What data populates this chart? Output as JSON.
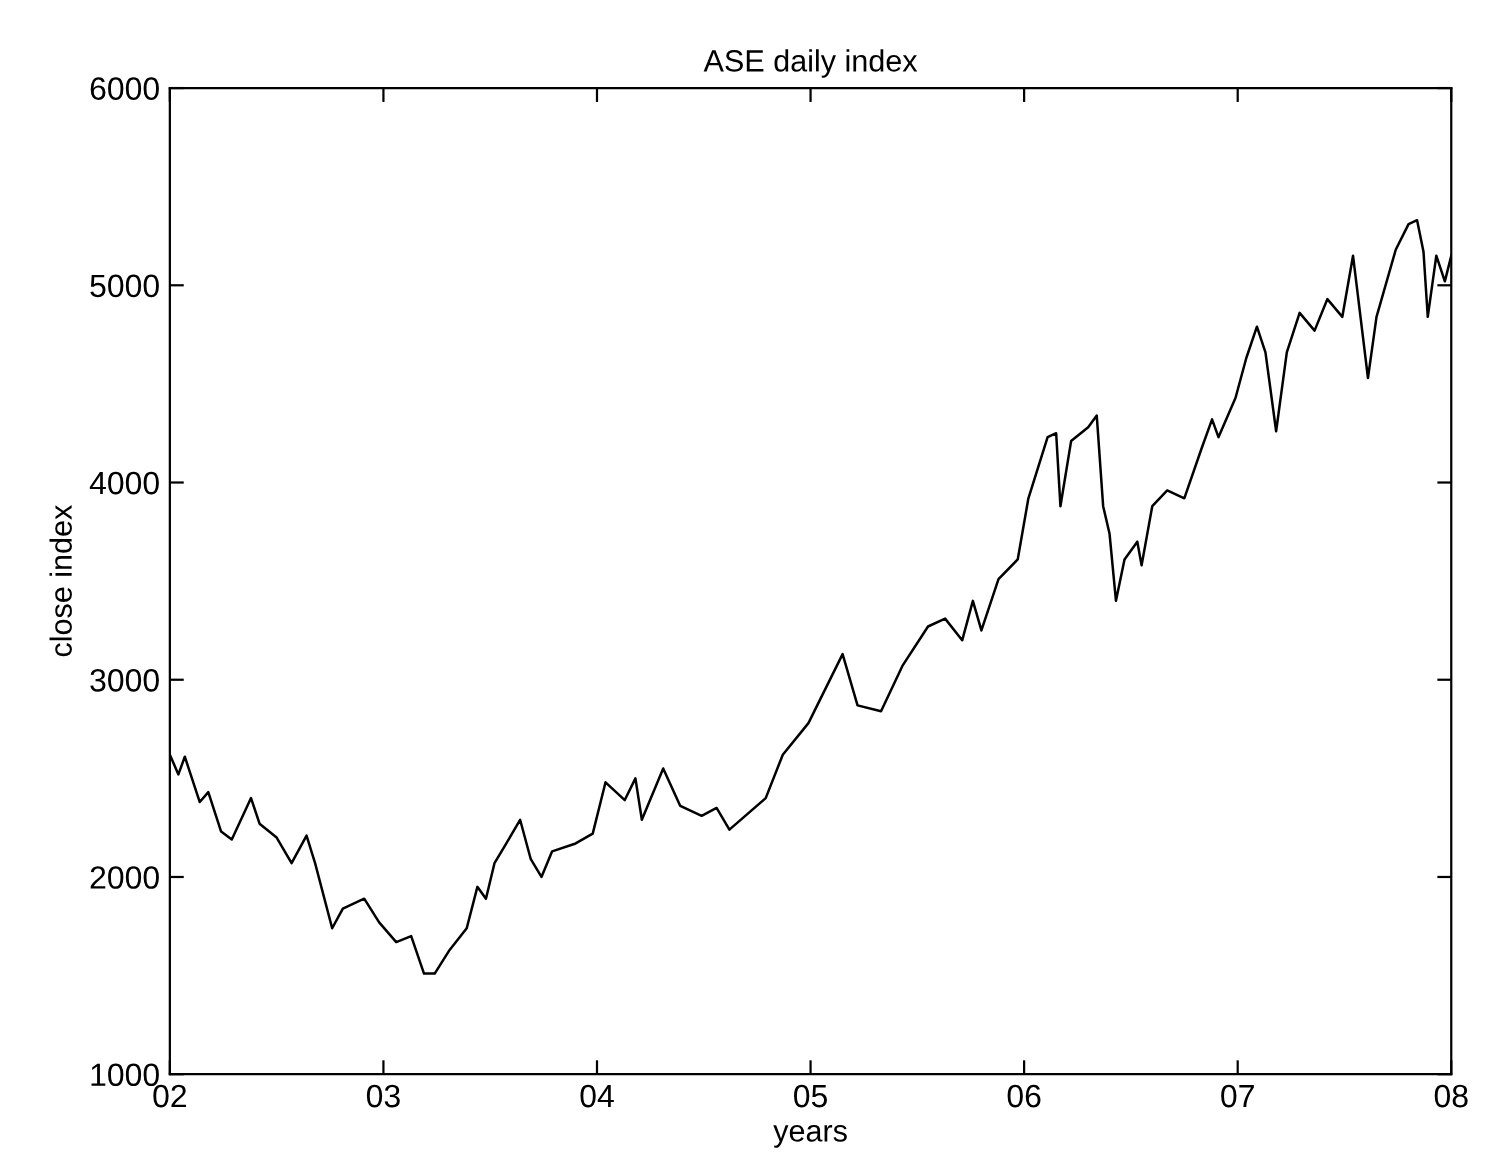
{
  "chart_data": {
    "type": "line",
    "title": "ASE daily index",
    "xlabel": "years",
    "ylabel": "close index",
    "xlim": [
      2,
      8
    ],
    "xticks": [
      {
        "value": 2,
        "label": "02"
      },
      {
        "value": 3,
        "label": "03"
      },
      {
        "value": 4,
        "label": "04"
      },
      {
        "value": 5,
        "label": "05"
      },
      {
        "value": 6,
        "label": "06"
      },
      {
        "value": 7,
        "label": "07"
      },
      {
        "value": 8,
        "label": "08"
      }
    ],
    "ylim": [
      1000,
      6000
    ],
    "yticks": [
      1000,
      2000,
      3000,
      4000,
      5000,
      6000
    ],
    "grid": false,
    "marker": "none",
    "line_style": "solid",
    "x": [
      2.0,
      2.04,
      2.07,
      2.14,
      2.18,
      2.24,
      2.29,
      2.38,
      2.42,
      2.5,
      2.57,
      2.64,
      2.68,
      2.76,
      2.81,
      2.91,
      2.98,
      3.06,
      3.13,
      3.19,
      3.24,
      3.31,
      3.39,
      3.44,
      3.48,
      3.52,
      3.57,
      3.64,
      3.69,
      3.74,
      3.79,
      3.9,
      3.98,
      4.04,
      4.13,
      4.18,
      4.21,
      4.31,
      4.39,
      4.49,
      4.56,
      4.62,
      4.79,
      4.87,
      4.99,
      5.15,
      5.22,
      5.33,
      5.43,
      5.55,
      5.63,
      5.71,
      5.76,
      5.8,
      5.88,
      5.97,
      6.02,
      6.11,
      6.15,
      6.17,
      6.22,
      6.3,
      6.34,
      6.37,
      6.4,
      6.43,
      6.47,
      6.53,
      6.55,
      6.6,
      6.67,
      6.75,
      6.83,
      6.88,
      6.91,
      6.99,
      7.04,
      7.09,
      7.13,
      7.18,
      7.23,
      7.29,
      7.36,
      7.42,
      7.49,
      7.54,
      7.61,
      7.65,
      7.74,
      7.8,
      7.84,
      7.87,
      7.89,
      7.93,
      7.97,
      8.0
    ],
    "series": [
      {
        "color": "#000000",
        "values": [
          2620,
          2520,
          2610,
          2380,
          2430,
          2230,
          2190,
          2400,
          2270,
          2200,
          2070,
          2210,
          2070,
          1740,
          1840,
          1890,
          1770,
          1670,
          1700,
          1510,
          1510,
          1630,
          1740,
          1950,
          1890,
          2070,
          2160,
          2290,
          2090,
          2000,
          2130,
          2170,
          2220,
          2480,
          2390,
          2500,
          2290,
          2550,
          2360,
          2310,
          2350,
          2240,
          2400,
          2620,
          2780,
          3130,
          2870,
          2840,
          3070,
          3270,
          3310,
          3200,
          3400,
          3250,
          3510,
          3610,
          3920,
          4230,
          4250,
          3880,
          4210,
          4280,
          4340,
          3880,
          3740,
          3400,
          3610,
          3700,
          3580,
          3880,
          3960,
          3920,
          4170,
          4320,
          4230,
          4430,
          4630,
          4790,
          4660,
          4260,
          4660,
          4860,
          4770,
          4930,
          4840,
          5150,
          4530,
          4840,
          5180,
          5310,
          5330,
          5170,
          4840,
          5150,
          5020,
          5150
        ]
      }
    ]
  }
}
